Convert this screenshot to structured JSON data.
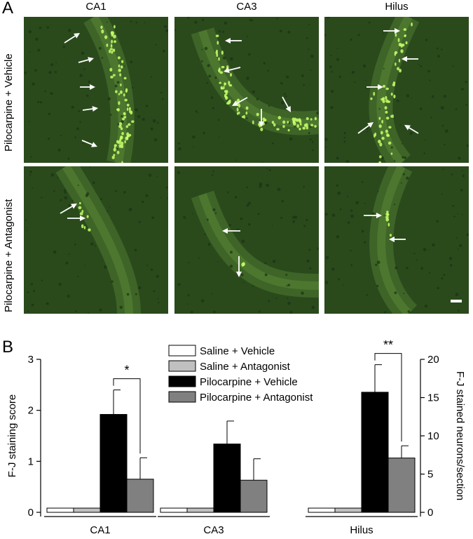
{
  "figure": {
    "panel_a_letter": "A",
    "panel_b_letter": "B",
    "columns": [
      "CA1",
      "CA3",
      "Hilus"
    ],
    "rows": [
      "Pilocarpine + Vehicle",
      "Pilocarpine + Antagonist"
    ],
    "tissue_color": "#2a4a1c",
    "stain_color": "#c8ff6a",
    "arrow_color": "#ffffff"
  },
  "chart_data": {
    "type": "bar",
    "categories": [
      "CA1",
      "CA3",
      "Hilus"
    ],
    "series": [
      {
        "name": "Saline + Vehicle",
        "color": "#ffffff",
        "values": [
          0,
          0,
          0
        ],
        "errors": [
          0,
          0,
          0
        ]
      },
      {
        "name": "Saline + Antagonist",
        "color": "#c0c0c0",
        "values": [
          0,
          0,
          0
        ],
        "errors": [
          0,
          0,
          0
        ]
      },
      {
        "name": "Pilocarpine + Vehicle",
        "color": "#000000",
        "values": [
          1.92,
          1.34,
          15.7
        ],
        "errors": [
          0.48,
          0.45,
          3.6
        ]
      },
      {
        "name": "Pilocarpine + Antagonist",
        "color": "#808080",
        "values": [
          0.65,
          0.63,
          7.1
        ],
        "errors": [
          0.42,
          0.42,
          1.6
        ]
      }
    ],
    "ylabel_left": "F-J staining score",
    "ylim_left": [
      0,
      3
    ],
    "yticks_left": [
      "0",
      "1",
      "2",
      "3"
    ],
    "ylabel_right": "F-J stained neurons/section",
    "ylim_right": [
      0,
      20
    ],
    "yticks_right": [
      "0",
      "5",
      "10",
      "15",
      "20"
    ],
    "right_axis_categories": [
      "Hilus"
    ],
    "significance": [
      {
        "category": "CA1",
        "label": "*"
      },
      {
        "category": "Hilus",
        "label": "**"
      }
    ],
    "legend_position": "top-center"
  }
}
